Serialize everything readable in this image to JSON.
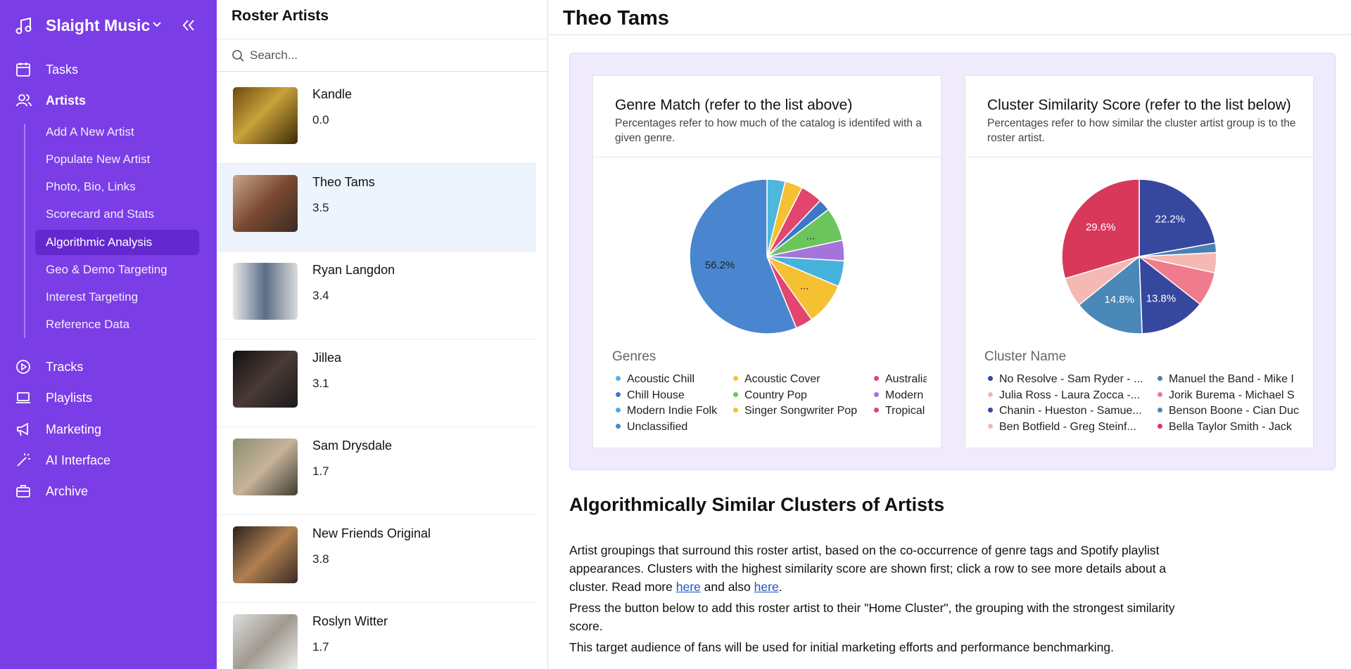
{
  "sidebar": {
    "brand": "Slaight Music",
    "nav": [
      "Tasks",
      "Artists"
    ],
    "subnav": [
      "Add A New Artist",
      "Populate New Artist",
      "Photo, Bio, Links",
      "Scorecard and Stats",
      "Algorithmic Analysis",
      "Geo & Demo Targeting",
      "Interest Targeting",
      "Reference Data"
    ],
    "nav_bottom": [
      "Tracks",
      "Playlists",
      "Marketing",
      "AI Interface",
      "Archive"
    ]
  },
  "roster": {
    "title": "Roster Artists",
    "search_placeholder": "Search...",
    "artists": [
      {
        "name": "Kandle",
        "score": "0.0"
      },
      {
        "name": "Theo Tams",
        "score": "3.5"
      },
      {
        "name": "Ryan Langdon",
        "score": "3.4"
      },
      {
        "name": "Jillea",
        "score": "3.1"
      },
      {
        "name": "Sam Drysdale",
        "score": "1.7"
      },
      {
        "name": "New Friends Original",
        "score": "3.8"
      },
      {
        "name": "Roslyn Witter",
        "score": "1.7"
      }
    ]
  },
  "main": {
    "title": "Theo Tams",
    "section_title": "Algorithmically Similar Clusters of Artists",
    "p1": {
      "text": "Artist groupings that surround this roster artist, based on the co-occurrence of genre tags and Spotify playlist appearances. Clusters with the highest similarity score are shown first; click a row to see more details about a cluster. Read more ",
      "link1": "here",
      "middle": " and also ",
      "link2": "here",
      "end": "."
    },
    "p2": "Press the button below to add this roster artist to their \"Home Cluster\", the grouping with the strongest similarity score.",
    "p3": "This target audience of fans will be used for initial marketing efforts and performance benchmarking."
  },
  "chart_data": [
    {
      "type": "pie",
      "title": "Genre Match (refer to the list above)",
      "subtitle": "Percentages refer to how much of the catalog is identifed with a given genre.",
      "legend_title": "Genres",
      "categories": [
        "Acoustic Chill",
        "Acoustic Cover",
        "Australia",
        "Chill House",
        "Country Pop",
        "Modern",
        "Modern Indie Folk",
        "Singer Songwriter Pop",
        "Tropical",
        "Unclassified"
      ],
      "values": [
        3.8,
        3.7,
        4.6,
        2.5,
        7.0,
        4.3,
        5.4,
        8.9,
        3.6,
        56.2
      ],
      "value_labels": [
        null,
        null,
        null,
        null,
        "...",
        null,
        null,
        "...",
        null,
        "56.2%"
      ],
      "colors": [
        "#4fb6dc",
        "#f5c133",
        "#e2456d",
        "#3b78c6",
        "#6cc55c",
        "#a474dc",
        "#47b2de",
        "#f5c133",
        "#e2456d",
        "#4a86cf"
      ],
      "legend_columns": 3
    },
    {
      "type": "pie",
      "title": "Cluster Similarity Score (refer to the list below)",
      "subtitle": "Percentages refer to how similar the cluster artist group is to the roster artist.",
      "legend_title": "Cluster Name",
      "categories": [
        "No Resolve - Sam Ryder - ...",
        "Manuel the Band - Mike I",
        "Julia Ross - Laura Zocca -...",
        "Jorik Burema - Michael S",
        "Chanin - Hueston - Samue...",
        "Benson Boone - Cian Duc",
        "Ben Botfield - Greg Steinf...",
        "Bella Taylor Smith - Jack"
      ],
      "values": [
        22.2,
        2.0,
        4.2,
        7.2,
        13.8,
        14.8,
        6.2,
        29.6
      ],
      "value_labels": [
        "22.2%",
        null,
        null,
        null,
        "13.8%",
        "14.8%",
        null,
        "29.6%"
      ],
      "colors": [
        "#36479e",
        "#4a7fb3",
        "#f6b8b2",
        "#ef7b8c",
        "#36479e",
        "#4a88b8",
        "#f6b8b2",
        "#d8395b"
      ],
      "legend_columns": 2
    }
  ]
}
